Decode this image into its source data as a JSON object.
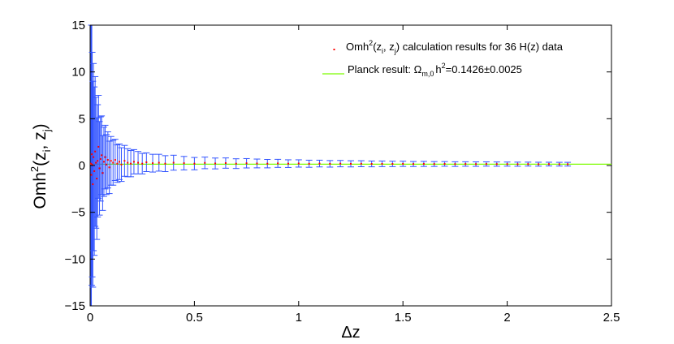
{
  "chart_data": {
    "type": "scatter",
    "xlabel": "Δz",
    "ylabel": {
      "base": "Omh",
      "sup": "2",
      "args": [
        "(z",
        "i",
        ", z",
        "j",
        ")"
      ]
    },
    "xlim": [
      0,
      2.5
    ],
    "ylim": [
      -15,
      15
    ],
    "xticks": [
      0,
      0.5,
      1,
      1.5,
      2,
      2.5
    ],
    "xtick_labels": [
      "0",
      "0.5",
      "1",
      "1.5",
      "2",
      "2.5"
    ],
    "yticks": [
      -15,
      -10,
      -5,
      0,
      5,
      10,
      15
    ],
    "ytick_labels": [
      "−15",
      "−10",
      "−5",
      "0",
      "5",
      "10",
      "15"
    ],
    "grid": false,
    "legend_placement": "top-right",
    "colors": {
      "points": "#ff0000",
      "errorbars": "#3355ff",
      "planck": "#7cfc00",
      "axes": "#000000"
    },
    "series": [
      {
        "name": "Omh²(z_i, z_j) calculation results for 36 H(z) data",
        "legend_parts": [
          "Omh",
          "2",
          "(z",
          "i",
          ", z",
          "j",
          ") calculation results for 36 H(z) data"
        ],
        "kind": "points_with_errorbars",
        "description_envelope": "error half-width shrinks roughly as 1/Δz: about 15 near Δz=0.01, about 1 near Δz=0.3, about 0.2 near Δz=2.3",
        "dz_range": [
          0.003,
          2.29
        ],
        "points": [
          [
            0.004,
            0.2,
            20
          ],
          [
            0.006,
            -1.0,
            16
          ],
          [
            0.008,
            1.2,
            14
          ],
          [
            0.01,
            0.1,
            12
          ],
          [
            0.013,
            -2.0,
            11
          ],
          [
            0.016,
            0.9,
            10
          ],
          [
            0.02,
            -0.6,
            9
          ],
          [
            0.024,
            1.5,
            8
          ],
          [
            0.028,
            0.3,
            7
          ],
          [
            0.032,
            -1.4,
            6.5
          ],
          [
            0.036,
            0.5,
            6
          ],
          [
            0.04,
            2.0,
            5.5
          ],
          [
            0.045,
            -0.3,
            5
          ],
          [
            0.05,
            0.7,
            4.5
          ],
          [
            0.055,
            1.1,
            4.2
          ],
          [
            0.06,
            -0.8,
            4.0
          ],
          [
            0.066,
            0.4,
            3.7
          ],
          [
            0.072,
            0.9,
            3.4
          ],
          [
            0.078,
            0.1,
            3.2
          ],
          [
            0.085,
            0.6,
            3.0
          ],
          [
            0.092,
            -0.2,
            2.8
          ],
          [
            0.1,
            0.5,
            2.6
          ],
          [
            0.11,
            0.3,
            2.4
          ],
          [
            0.12,
            0.6,
            2.2
          ],
          [
            0.13,
            0.2,
            2.0
          ],
          [
            0.14,
            0.4,
            1.9
          ],
          [
            0.15,
            0.1,
            1.8
          ],
          [
            0.165,
            0.5,
            1.65
          ],
          [
            0.18,
            0.3,
            1.5
          ],
          [
            0.195,
            0.2,
            1.4
          ],
          [
            0.21,
            0.4,
            1.3
          ],
          [
            0.23,
            0.3,
            1.2
          ],
          [
            0.25,
            0.2,
            1.1
          ],
          [
            0.27,
            0.35,
            1.0
          ],
          [
            0.3,
            0.25,
            0.95
          ],
          [
            0.33,
            0.3,
            0.9
          ],
          [
            0.36,
            0.2,
            0.85
          ],
          [
            0.4,
            0.3,
            0.8
          ],
          [
            0.45,
            0.25,
            0.72
          ],
          [
            0.5,
            0.2,
            0.66
          ],
          [
            0.55,
            0.28,
            0.62
          ],
          [
            0.6,
            0.22,
            0.58
          ],
          [
            0.65,
            0.26,
            0.55
          ],
          [
            0.7,
            0.2,
            0.52
          ],
          [
            0.75,
            0.24,
            0.5
          ],
          [
            0.8,
            0.22,
            0.47
          ],
          [
            0.85,
            0.2,
            0.45
          ],
          [
            0.9,
            0.23,
            0.43
          ],
          [
            0.95,
            0.2,
            0.41
          ],
          [
            1.0,
            0.22,
            0.39
          ],
          [
            1.05,
            0.19,
            0.38
          ],
          [
            1.1,
            0.21,
            0.36
          ],
          [
            1.15,
            0.18,
            0.35
          ],
          [
            1.2,
            0.2,
            0.34
          ],
          [
            1.25,
            0.18,
            0.33
          ],
          [
            1.3,
            0.19,
            0.32
          ],
          [
            1.35,
            0.17,
            0.31
          ],
          [
            1.4,
            0.18,
            0.3
          ],
          [
            1.45,
            0.17,
            0.29
          ],
          [
            1.5,
            0.18,
            0.28
          ],
          [
            1.55,
            0.16,
            0.27
          ],
          [
            1.6,
            0.17,
            0.27
          ],
          [
            1.65,
            0.16,
            0.26
          ],
          [
            1.7,
            0.17,
            0.25
          ],
          [
            1.75,
            0.15,
            0.25
          ],
          [
            1.8,
            0.16,
            0.24
          ],
          [
            1.85,
            0.15,
            0.24
          ],
          [
            1.9,
            0.16,
            0.23
          ],
          [
            1.95,
            0.15,
            0.23
          ],
          [
            2.0,
            0.15,
            0.22
          ],
          [
            2.05,
            0.14,
            0.22
          ],
          [
            2.1,
            0.15,
            0.21
          ],
          [
            2.15,
            0.14,
            0.21
          ],
          [
            2.2,
            0.15,
            0.2
          ],
          [
            2.25,
            0.14,
            0.2
          ],
          [
            2.29,
            0.14,
            0.2
          ]
        ]
      },
      {
        "name": "Planck result: Ω_m,0 h² = 0.1426±0.0025",
        "legend_parts": [
          "Planck result: Ω",
          "m,0",
          "h",
          "2",
          "=0.1426±0.0025"
        ],
        "kind": "horizontal_line",
        "y": 0.1426,
        "uncertainty": 0.0025
      }
    ]
  }
}
